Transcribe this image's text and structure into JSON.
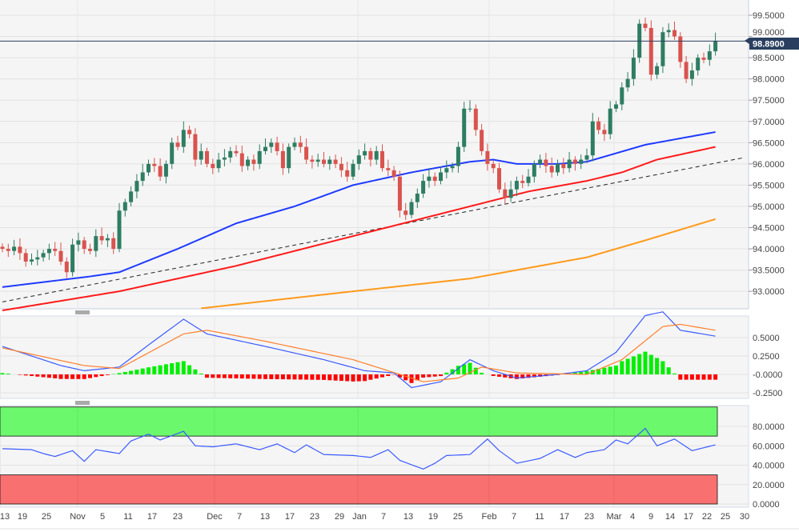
{
  "last_price_label": "98.8900",
  "colors": {
    "up": "#2e7d62",
    "down": "#d9534f",
    "ma_fast": "#1f3bff",
    "ma_mid": "#ff1a1a",
    "ma_slow": "#ff9a1a",
    "macd": "#3b5bff",
    "signal": "#ff7f2a",
    "hist_pos": "#00ee00",
    "hist_neg": "#ff0000",
    "ob_zone": "#6cf86c",
    "os_zone": "#f87070",
    "price_tag": "#2a3f5f"
  },
  "chart_data": [
    {
      "type": "candlestick",
      "title": "",
      "ylim": [
        92.6,
        99.8
      ],
      "y_ticks": [
        "99.5000",
        "99.0000",
        "98.5000",
        "98.0000",
        "97.5000",
        "97.0000",
        "96.5000",
        "96.0000",
        "95.5000",
        "95.0000",
        "94.5000",
        "94.0000",
        "93.5000",
        "93.0000"
      ],
      "y_tick_values": [
        99.5,
        99.0,
        98.5,
        98.0,
        97.5,
        97.0,
        96.5,
        96.0,
        95.5,
        95.0,
        94.5,
        94.0,
        93.5,
        93.0
      ],
      "x_ticks": [
        "13",
        "19",
        "25",
        "Nov",
        "5",
        "11",
        "17",
        "23",
        "Dec",
        "7",
        "13",
        "17",
        "23",
        "29",
        "Jan",
        "7",
        "13",
        "19",
        "25",
        "Feb",
        "7",
        "11",
        "17",
        "23",
        "Mar",
        "4",
        "9",
        "14",
        "17",
        "22",
        "25",
        "30"
      ],
      "closes": [
        94.0,
        93.95,
        94.05,
        93.9,
        93.7,
        93.75,
        93.8,
        93.9,
        94.0,
        93.95,
        93.7,
        93.45,
        94.1,
        94.2,
        94.0,
        93.95,
        94.3,
        94.2,
        94.25,
        94.0,
        94.9,
        95.1,
        95.35,
        95.6,
        95.8,
        96.0,
        95.95,
        95.7,
        96.0,
        96.5,
        96.4,
        96.8,
        96.7,
        96.1,
        96.3,
        96.0,
        95.9,
        96.1,
        96.15,
        96.3,
        96.25,
        95.95,
        96.1,
        96.0,
        96.3,
        96.4,
        96.5,
        96.3,
        95.9,
        96.4,
        96.5,
        96.4,
        96.1,
        96.05,
        96.1,
        96.0,
        96.1,
        96.0,
        95.85,
        95.7,
        96.0,
        96.2,
        96.3,
        96.1,
        96.3,
        95.9,
        95.85,
        95.7,
        94.9,
        94.8,
        95.1,
        95.3,
        95.6,
        95.7,
        95.6,
        95.8,
        95.9,
        95.95,
        96.4,
        97.3,
        97.3,
        96.8,
        96.3,
        96.0,
        95.9,
        95.4,
        95.2,
        95.4,
        95.6,
        95.55,
        95.7,
        96.0,
        96.1,
        95.95,
        95.8,
        96.0,
        95.9,
        96.1,
        96.0,
        96.1,
        96.2,
        97.0,
        96.8,
        96.7,
        97.3,
        97.4,
        97.8,
        98.0,
        98.5,
        99.3,
        99.2,
        98.1,
        98.3,
        99.1,
        99.15,
        99.0,
        98.4,
        98.0,
        98.2,
        98.5,
        98.45,
        98.65,
        98.89
      ],
      "moving_averages": [
        {
          "name": "MA fast",
          "points": [
            [
              0,
              93.1
            ],
            [
              15,
              93.35
            ],
            [
              20,
              93.45
            ],
            [
              30,
              94.0
            ],
            [
              40,
              94.6
            ],
            [
              50,
              95.0
            ],
            [
              60,
              95.5
            ],
            [
              70,
              95.8
            ],
            [
              80,
              96.05
            ],
            [
              84,
              96.1
            ],
            [
              88,
              96.0
            ],
            [
              95,
              96.0
            ],
            [
              100,
              96.05
            ],
            [
              105,
              96.25
            ],
            [
              110,
              96.45
            ],
            [
              116,
              96.6
            ],
            [
              122,
              96.75
            ]
          ]
        },
        {
          "name": "MA mid",
          "points": [
            [
              0,
              92.55
            ],
            [
              20,
              93.0
            ],
            [
              40,
              93.6
            ],
            [
              60,
              94.3
            ],
            [
              70,
              94.65
            ],
            [
              80,
              95.0
            ],
            [
              90,
              95.35
            ],
            [
              100,
              95.6
            ],
            [
              106,
              95.8
            ],
            [
              112,
              96.1
            ],
            [
              122,
              96.4
            ]
          ]
        },
        {
          "name": "MA slow",
          "points": [
            [
              34,
              92.6
            ],
            [
              60,
              93.0
            ],
            [
              80,
              93.3
            ],
            [
              100,
              93.8
            ],
            [
              110,
              94.2
            ],
            [
              122,
              94.7
            ]
          ]
        }
      ],
      "trendline": [
        [
          0,
          92.75
        ],
        [
          127,
          96.15
        ]
      ]
    },
    {
      "type": "line",
      "name": "MACD",
      "ylim": [
        -0.3,
        0.9
      ],
      "y_ticks": [
        "0.5000",
        "0.2500",
        "-0.0000",
        "-0.2500"
      ],
      "y_tick_values": [
        0.5,
        0.25,
        0,
        -0.25
      ],
      "macd": [
        [
          0,
          0.38
        ],
        [
          10,
          0.12
        ],
        [
          14,
          0.05
        ],
        [
          20,
          0.1
        ],
        [
          25,
          0.4
        ],
        [
          31,
          0.75
        ],
        [
          35,
          0.55
        ],
        [
          45,
          0.38
        ],
        [
          55,
          0.2
        ],
        [
          62,
          0.05
        ],
        [
          67,
          0.02
        ],
        [
          70,
          -0.18
        ],
        [
          75,
          -0.1
        ],
        [
          80,
          0.2
        ],
        [
          84,
          0.05
        ],
        [
          88,
          -0.05
        ],
        [
          95,
          0.0
        ],
        [
          100,
          0.05
        ],
        [
          105,
          0.3
        ],
        [
          110,
          0.8
        ],
        [
          113,
          0.85
        ],
        [
          116,
          0.6
        ],
        [
          122,
          0.52
        ]
      ],
      "signal": [
        [
          0,
          0.36
        ],
        [
          14,
          0.12
        ],
        [
          20,
          0.08
        ],
        [
          31,
          0.55
        ],
        [
          35,
          0.6
        ],
        [
          45,
          0.45
        ],
        [
          60,
          0.2
        ],
        [
          68,
          0.0
        ],
        [
          72,
          -0.1
        ],
        [
          78,
          -0.05
        ],
        [
          82,
          0.1
        ],
        [
          88,
          0.02
        ],
        [
          100,
          0.0
        ],
        [
          106,
          0.2
        ],
        [
          113,
          0.65
        ],
        [
          116,
          0.68
        ],
        [
          122,
          0.6
        ]
      ]
    },
    {
      "type": "line",
      "name": "RSI",
      "ylim": [
        0,
        100
      ],
      "overbought": 70,
      "oversold": 30,
      "y_ticks": [
        "80.0000",
        "60.0000",
        "40.0000",
        "20.0000",
        "0.0000"
      ],
      "y_tick_values": [
        80,
        60,
        40,
        20,
        0
      ],
      "values": [
        [
          0,
          57
        ],
        [
          5,
          56
        ],
        [
          7,
          52
        ],
        [
          9,
          49
        ],
        [
          12,
          55
        ],
        [
          14,
          44
        ],
        [
          16,
          56
        ],
        [
          20,
          52
        ],
        [
          22,
          65
        ],
        [
          25,
          72
        ],
        [
          27,
          66
        ],
        [
          31,
          75
        ],
        [
          33,
          60
        ],
        [
          36,
          59
        ],
        [
          40,
          62
        ],
        [
          44,
          56
        ],
        [
          47,
          62
        ],
        [
          50,
          53
        ],
        [
          52,
          61
        ],
        [
          55,
          51
        ],
        [
          60,
          50
        ],
        [
          63,
          48
        ],
        [
          66,
          56
        ],
        [
          68,
          45
        ],
        [
          72,
          36
        ],
        [
          74,
          42
        ],
        [
          76,
          50
        ],
        [
          80,
          51
        ],
        [
          83,
          67
        ],
        [
          85,
          55
        ],
        [
          88,
          42
        ],
        [
          92,
          47
        ],
        [
          95,
          56
        ],
        [
          98,
          48
        ],
        [
          100,
          53
        ],
        [
          103,
          56
        ],
        [
          105,
          66
        ],
        [
          107,
          62
        ],
        [
          110,
          78
        ],
        [
          112,
          60
        ],
        [
          115,
          67
        ],
        [
          118,
          55
        ],
        [
          122,
          61
        ]
      ]
    }
  ]
}
